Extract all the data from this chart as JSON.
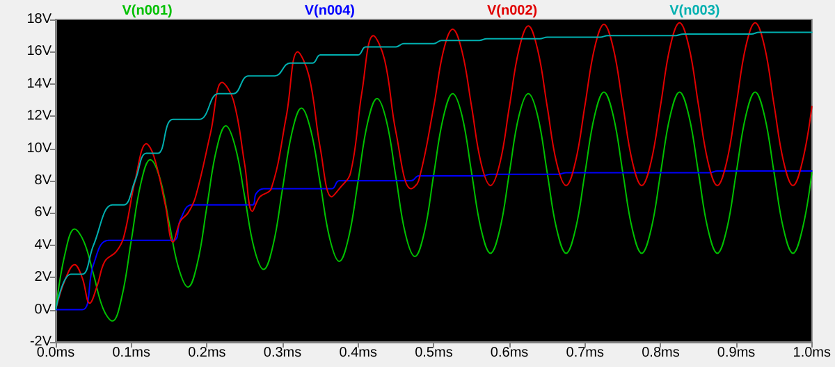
{
  "chart_data": {
    "type": "line",
    "xlim": [
      0,
      1
    ],
    "ylim": [
      -2,
      18
    ],
    "xticks": [
      {
        "value": 0,
        "label": "0.0ms"
      },
      {
        "value": 0.1,
        "label": "0.1ms"
      },
      {
        "value": 0.2,
        "label": "0.2ms"
      },
      {
        "value": 0.3,
        "label": "0.3ms"
      },
      {
        "value": 0.4,
        "label": "0.4ms"
      },
      {
        "value": 0.5,
        "label": "0.5ms"
      },
      {
        "value": 0.6,
        "label": "0.6ms"
      },
      {
        "value": 0.7,
        "label": "0.7ms"
      },
      {
        "value": 0.8,
        "label": "0.8ms"
      },
      {
        "value": 0.9,
        "label": "0.9ms"
      },
      {
        "value": 1,
        "label": "1.0ms"
      }
    ],
    "yticks": [
      {
        "value": -2,
        "label": "-2V"
      },
      {
        "value": 0,
        "label": "0V"
      },
      {
        "value": 2,
        "label": "2V"
      },
      {
        "value": 4,
        "label": "4V"
      },
      {
        "value": 6,
        "label": "6V"
      },
      {
        "value": 8,
        "label": "8V"
      },
      {
        "value": 10,
        "label": "10V"
      },
      {
        "value": 12,
        "label": "12V"
      },
      {
        "value": 14,
        "label": "14V"
      },
      {
        "value": 16,
        "label": "16V"
      },
      {
        "value": 18,
        "label": "18V"
      }
    ],
    "grid": false,
    "legend": "top",
    "marker": "none",
    "line_style": "solid",
    "series": [
      {
        "name": "V(n001)",
        "color": "#00c000",
        "x": [
          0,
          0.0125,
          0.025,
          0.0375,
          0.05,
          0.0625,
          0.075,
          0.0875,
          0.1,
          0.1125,
          0.125,
          0.1375,
          0.15,
          0.1625,
          0.175,
          0.1875,
          0.2,
          0.2125,
          0.225,
          0.2375,
          0.25,
          0.2625,
          0.275,
          0.2875,
          0.3,
          0.3125,
          0.325,
          0.3375,
          0.35,
          0.3625,
          0.375,
          0.3875,
          0.4,
          0.4125,
          0.425,
          0.4375,
          0.45,
          0.4625,
          0.475,
          0.4875,
          0.5,
          0.5125,
          0.525,
          0.5375,
          0.55,
          0.5625,
          0.575,
          0.5875,
          0.6,
          0.6125,
          0.625,
          0.6375,
          0.65,
          0.6625,
          0.675,
          0.6875,
          0.7,
          0.7125,
          0.725,
          0.7375,
          0.75,
          0.7625,
          0.775,
          0.7875,
          0.8,
          0.8125,
          0.825,
          0.8375,
          0.85,
          0.8625,
          0.875,
          0.8875,
          0.9,
          0.9125,
          0.925,
          0.9375,
          0.95,
          0.9625,
          0.975,
          0.9875,
          1
        ],
        "values": [
          0,
          3.5,
          5,
          4.2,
          2.2,
          0.1,
          -0.7,
          0.8,
          4.3,
          7.8,
          9.3,
          8.2,
          5.4,
          2.6,
          1.4,
          2.9,
          6.4,
          9.9,
          11.4,
          10.1,
          7,
          3.8,
          2.5,
          4,
          7.5,
          11,
          12.5,
          11.1,
          7.8,
          4.4,
          3,
          4.5,
          8,
          11.6,
          13.1,
          11.7,
          8.2,
          4.7,
          3.3,
          4.8,
          8.4,
          11.9,
          13.4,
          12,
          8.5,
          5,
          3.5,
          5,
          8.5,
          12,
          13.4,
          12,
          8.5,
          5,
          3.5,
          5,
          8.5,
          12,
          13.5,
          12,
          8.5,
          5,
          3.5,
          5,
          8.5,
          12,
          13.5,
          12,
          8.5,
          5,
          3.5,
          5,
          8.5,
          12,
          13.5,
          12,
          8.5,
          5,
          3.5,
          5,
          8.5
        ]
      },
      {
        "name": "V(n004)",
        "color": "#0000ff",
        "x": [
          0,
          0.035,
          0.05,
          0.07,
          0.155,
          0.165,
          0.18,
          0.26,
          0.265,
          0.275,
          0.365,
          0.375,
          0.47,
          0.48,
          0.565,
          0.575,
          0.665,
          0.675,
          0.865,
          0.875,
          1
        ],
        "values": [
          0,
          0,
          2.8,
          4.3,
          4.3,
          5.6,
          6.5,
          6.5,
          7.2,
          7.5,
          7.5,
          8,
          8,
          8.3,
          8.3,
          8.4,
          8.4,
          8.5,
          8.5,
          8.6,
          8.6
        ]
      },
      {
        "name": "V(n002)",
        "color": "#e00000",
        "x": [
          0,
          0.012,
          0.025,
          0.035,
          0.045,
          0.055,
          0.065,
          0.08,
          0.09,
          0.105,
          0.12,
          0.13,
          0.145,
          0.155,
          0.165,
          0.175,
          0.185,
          0.205,
          0.22,
          0.235,
          0.25,
          0.26,
          0.27,
          0.285,
          0.305,
          0.32,
          0.335,
          0.35,
          0.365,
          0.375,
          0.39,
          0.405,
          0.42,
          0.435,
          0.45,
          0.47,
          0.48,
          0.5,
          0.5125,
          0.525,
          0.5375,
          0.55,
          0.5625,
          0.575,
          0.5875,
          0.6,
          0.6125,
          0.625,
          0.6375,
          0.65,
          0.6625,
          0.675,
          0.6875,
          0.7,
          0.7125,
          0.725,
          0.7375,
          0.75,
          0.7625,
          0.775,
          0.7875,
          0.8,
          0.8125,
          0.825,
          0.8375,
          0.85,
          0.8625,
          0.875,
          0.8875,
          0.9,
          0.9125,
          0.925,
          0.9375,
          0.95,
          0.9625,
          0.975,
          0.9875,
          1
        ],
        "values": [
          0,
          1.8,
          2.8,
          2,
          0.4,
          1.5,
          3,
          3.6,
          4.5,
          8,
          10.3,
          9.5,
          6.5,
          4.2,
          5.5,
          6,
          7,
          11,
          14.1,
          13,
          9,
          6.1,
          7,
          7.5,
          12,
          16,
          14.5,
          10,
          7,
          7.5,
          8.5,
          13.5,
          17,
          15.5,
          11,
          7.5,
          8,
          12.6,
          16,
          17.4,
          16,
          12.6,
          9.1,
          7.7,
          9.1,
          12.6,
          16.1,
          17.6,
          16.1,
          12.6,
          9.1,
          7.7,
          9.2,
          12.7,
          16.2,
          17.7,
          16.2,
          12.7,
          9.2,
          7.7,
          9.2,
          12.7,
          16.3,
          17.8,
          16.3,
          12.7,
          9.2,
          7.7,
          9.2,
          12.7,
          16.3,
          17.8,
          16.3,
          12.7,
          9.2,
          7.7,
          9.2,
          12.6
        ]
      },
      {
        "name": "V(n003)",
        "color": "#00b0b0",
        "x": [
          0,
          0.02,
          0.035,
          0.05,
          0.075,
          0.09,
          0.105,
          0.12,
          0.135,
          0.155,
          0.19,
          0.215,
          0.235,
          0.255,
          0.29,
          0.31,
          0.34,
          0.35,
          0.4,
          0.41,
          0.45,
          0.46,
          0.5,
          0.51,
          0.56,
          0.57,
          0.64,
          0.65,
          0.72,
          0.73,
          0.82,
          0.83,
          0.92,
          0.93,
          1
        ],
        "values": [
          0,
          2.2,
          2.2,
          4,
          6.5,
          6.5,
          8,
          9.7,
          9.7,
          11.8,
          11.8,
          13.4,
          13.4,
          14.5,
          14.5,
          15.3,
          15.3,
          15.8,
          15.8,
          16.3,
          16.3,
          16.5,
          16.5,
          16.7,
          16.7,
          16.8,
          16.8,
          16.9,
          16.9,
          17,
          17,
          17.1,
          17.1,
          17.2,
          17.2
        ]
      }
    ]
  }
}
